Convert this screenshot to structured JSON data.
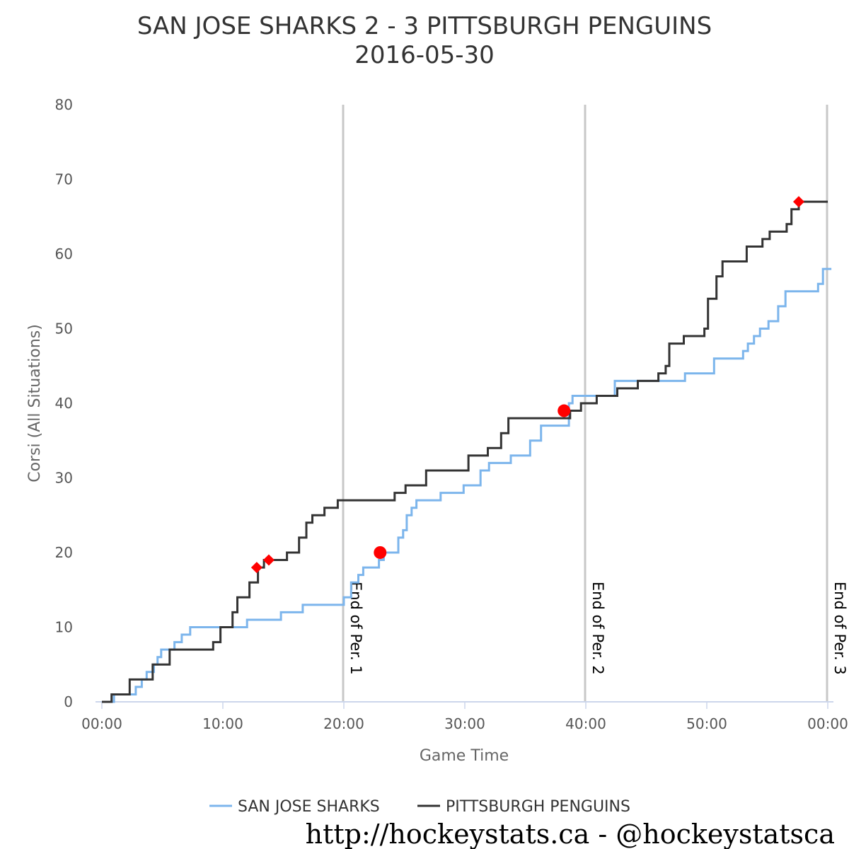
{
  "chart_data": {
    "type": "line",
    "title": "SAN JOSE SHARKS 2 - 3 PITTSBURGH PENGUINS",
    "subtitle": "2016-05-30",
    "xlabel": "Game Time",
    "ylabel": "Corsi (All Situations)",
    "xlim": [
      0,
      60
    ],
    "ylim": [
      0,
      80
    ],
    "x_unit": "minutes",
    "x_ticks": [
      0,
      10,
      20,
      30,
      40,
      50,
      60
    ],
    "x_tick_labels": [
      "00:00",
      "10:00",
      "20:00",
      "30:00",
      "40:00",
      "50:00",
      "00:00"
    ],
    "y_ticks": [
      0,
      10,
      20,
      30,
      40,
      50,
      60,
      70,
      80
    ],
    "y_tick_labels": [
      "0",
      "10",
      "20",
      "30",
      "40",
      "50",
      "60",
      "70",
      "80"
    ],
    "grid": false,
    "legend_position": "bottom",
    "period_markers": [
      {
        "x": 20,
        "label": "End of Per. 1"
      },
      {
        "x": 40,
        "label": "End of Per. 2"
      },
      {
        "x": 60,
        "label": "End of Per. 3"
      }
    ],
    "series": [
      {
        "name": "SAN JOSE SHARKS",
        "color": "#7cb5ec",
        "line": "step",
        "points": [
          [
            0,
            0
          ],
          [
            1.0,
            1
          ],
          [
            2.8,
            2
          ],
          [
            3.3,
            3
          ],
          [
            3.7,
            4
          ],
          [
            4.3,
            5
          ],
          [
            4.6,
            6
          ],
          [
            4.9,
            7
          ],
          [
            6.0,
            8
          ],
          [
            6.6,
            9
          ],
          [
            7.3,
            10
          ],
          [
            9.8,
            10
          ],
          [
            12.0,
            11
          ],
          [
            14.8,
            12
          ],
          [
            16.6,
            13
          ],
          [
            20.0,
            14
          ],
          [
            20.6,
            16
          ],
          [
            21.2,
            17
          ],
          [
            21.6,
            18
          ],
          [
            22.9,
            19
          ],
          [
            23.3,
            20
          ],
          [
            24.5,
            22
          ],
          [
            24.9,
            23
          ],
          [
            25.2,
            25
          ],
          [
            25.6,
            26
          ],
          [
            26.0,
            27
          ],
          [
            28.0,
            28
          ],
          [
            29.9,
            29
          ],
          [
            31.3,
            31
          ],
          [
            32.0,
            32
          ],
          [
            33.8,
            33
          ],
          [
            35.4,
            35
          ],
          [
            36.3,
            37
          ],
          [
            38.6,
            40
          ],
          [
            38.9,
            41
          ],
          [
            42.4,
            43
          ],
          [
            48.0,
            43
          ],
          [
            48.2,
            44
          ],
          [
            50.6,
            46
          ],
          [
            53.0,
            47
          ],
          [
            53.4,
            48
          ],
          [
            53.9,
            49
          ],
          [
            54.4,
            50
          ],
          [
            55.1,
            51
          ],
          [
            55.9,
            53
          ],
          [
            56.5,
            55
          ],
          [
            59.2,
            56
          ],
          [
            59.6,
            58
          ],
          [
            60.3,
            58
          ]
        ]
      },
      {
        "name": "PITTSBURGH PENGUINS",
        "color": "#333333",
        "line": "step",
        "points": [
          [
            0,
            0
          ],
          [
            0.8,
            1
          ],
          [
            2.3,
            3
          ],
          [
            4.2,
            5
          ],
          [
            5.6,
            7
          ],
          [
            9.2,
            8
          ],
          [
            9.8,
            10
          ],
          [
            10.8,
            12
          ],
          [
            11.2,
            14
          ],
          [
            12.2,
            16
          ],
          [
            12.9,
            18
          ],
          [
            13.4,
            19
          ],
          [
            15.3,
            20
          ],
          [
            16.3,
            22
          ],
          [
            16.9,
            24
          ],
          [
            17.4,
            25
          ],
          [
            18.4,
            26
          ],
          [
            19.5,
            27
          ],
          [
            24.2,
            28
          ],
          [
            25.1,
            29
          ],
          [
            26.8,
            31
          ],
          [
            29.1,
            31
          ],
          [
            30.3,
            33
          ],
          [
            31.9,
            34
          ],
          [
            33.0,
            36
          ],
          [
            33.6,
            38
          ],
          [
            38.7,
            39
          ],
          [
            39.6,
            40
          ],
          [
            40.9,
            41
          ],
          [
            42.6,
            42
          ],
          [
            44.3,
            43
          ],
          [
            46.0,
            44
          ],
          [
            46.6,
            45
          ],
          [
            46.9,
            48
          ],
          [
            48.1,
            49
          ],
          [
            49.8,
            50
          ],
          [
            50.1,
            54
          ],
          [
            50.8,
            57
          ],
          [
            51.3,
            59
          ],
          [
            53.3,
            61
          ],
          [
            54.6,
            62
          ],
          [
            55.2,
            63
          ],
          [
            56.6,
            64
          ],
          [
            57.0,
            66
          ],
          [
            57.6,
            67
          ],
          [
            60.0,
            67
          ]
        ]
      }
    ],
    "events": [
      {
        "team": "PITTSBURGH PENGUINS",
        "marker": "diamond",
        "x": 12.8,
        "y": 18
      },
      {
        "team": "PITTSBURGH PENGUINS",
        "marker": "diamond",
        "x": 13.8,
        "y": 19
      },
      {
        "team": "SAN JOSE SHARKS",
        "marker": "circle",
        "x": 23.0,
        "y": 20
      },
      {
        "team": "SAN JOSE SHARKS",
        "marker": "circle",
        "x": 38.2,
        "y": 39
      },
      {
        "team": "PITTSBURGH PENGUINS",
        "marker": "diamond",
        "x": 57.6,
        "y": 67
      }
    ],
    "event_color": "#ff0000"
  },
  "footer": {
    "credit": "http://hockeystats.ca - @hockeystatsca"
  }
}
